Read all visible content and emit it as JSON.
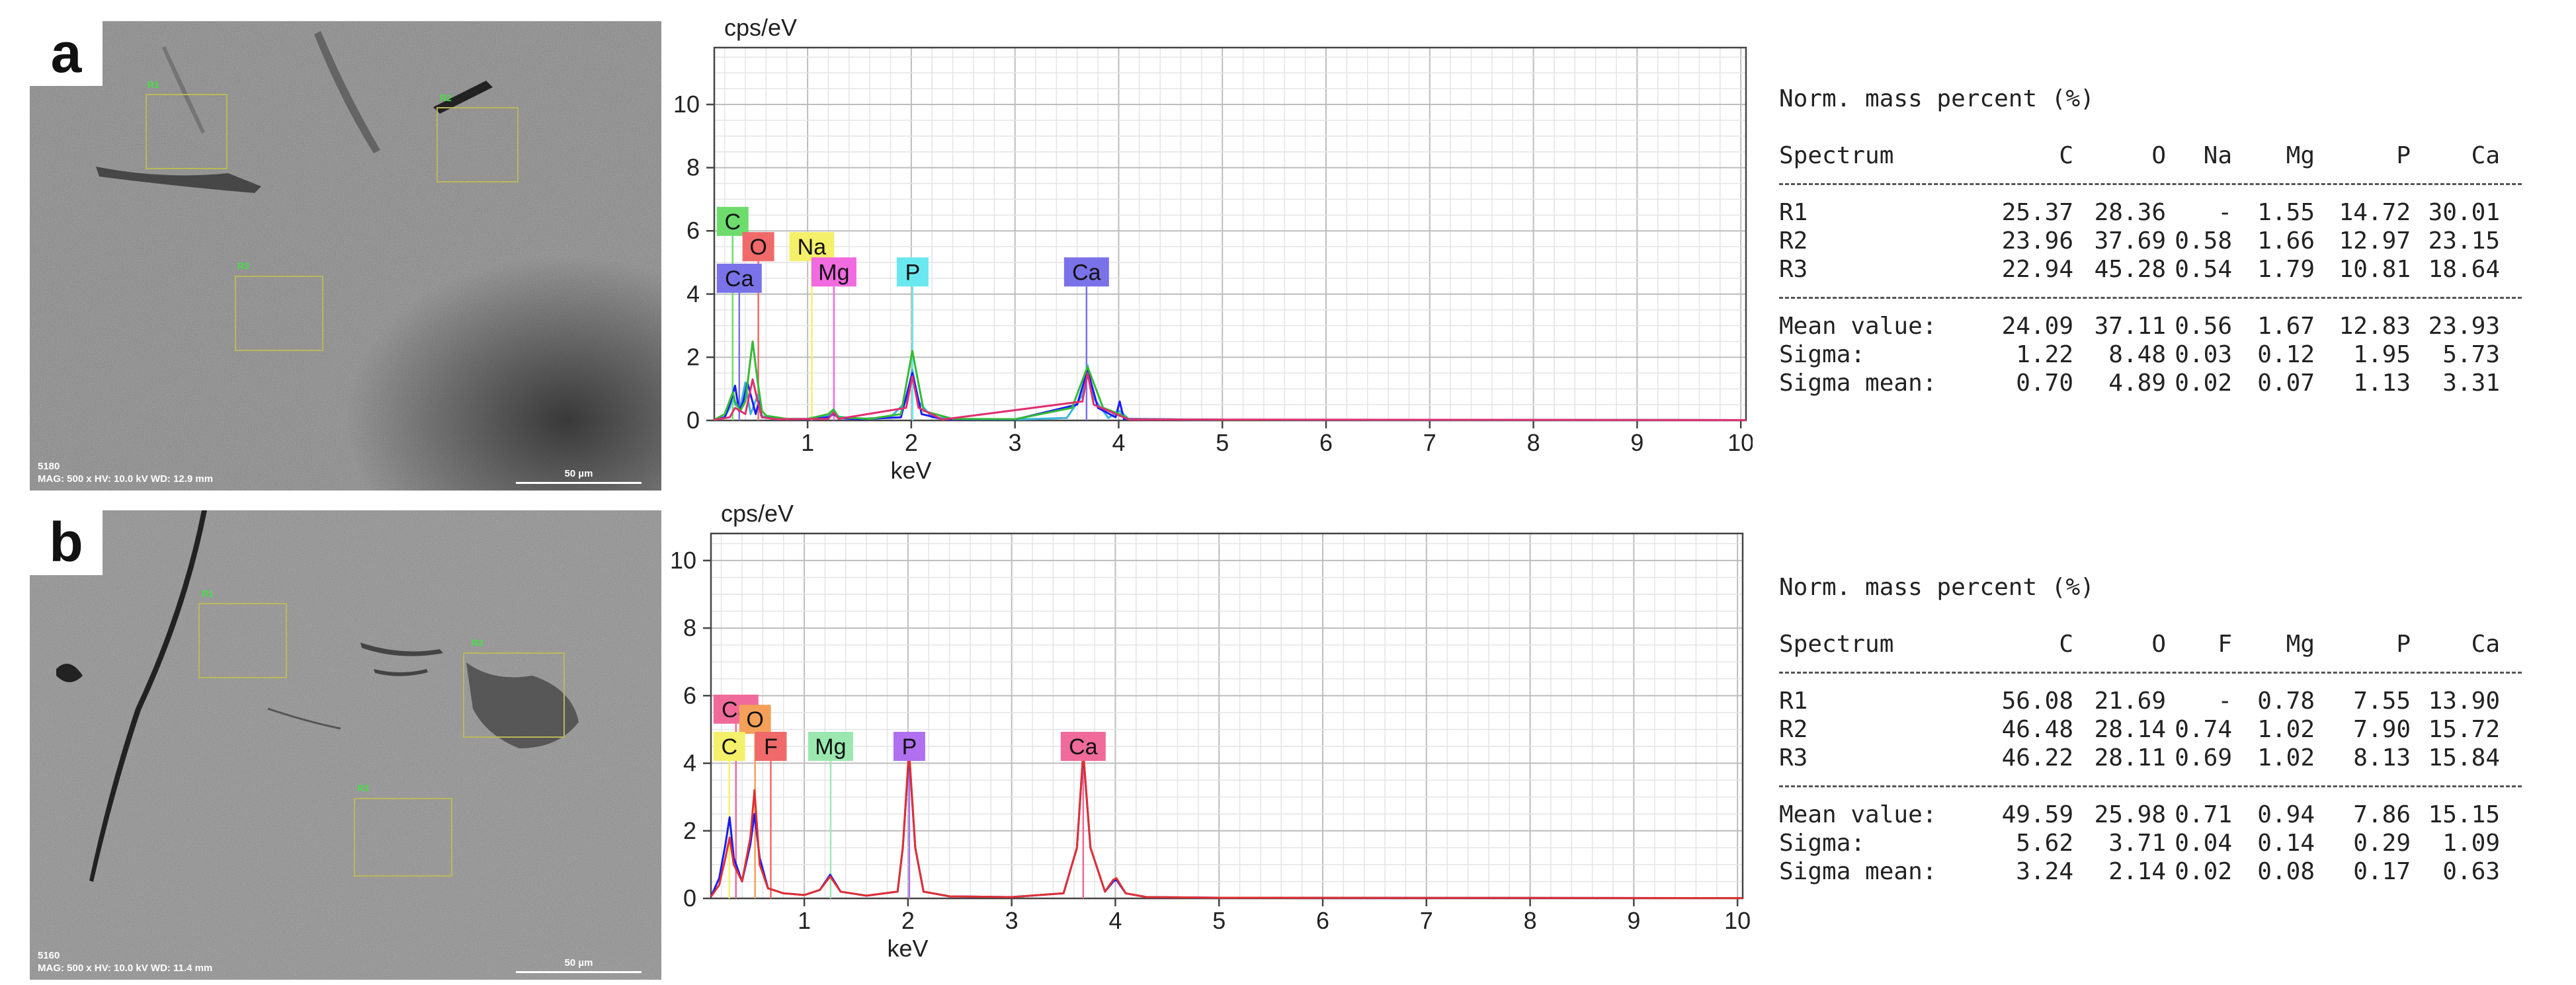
{
  "panels": [
    {
      "letter": "a",
      "sem": {
        "meta_line1": "5180",
        "meta_line2": "MAG: 500 x  HV: 10.0 kV  WD: 12.9 mm",
        "scale_label": "50 µm",
        "roi_labels": [
          "R1",
          "R2",
          "R3"
        ]
      },
      "table": {
        "title": "Norm. mass percent (%)",
        "columns": [
          "Spectrum",
          "C",
          "O",
          "Na",
          "Mg",
          "P",
          "Ca"
        ],
        "rows": [
          [
            "R1",
            "25.37",
            "28.36",
            "-",
            "1.55",
            "14.72",
            "30.01"
          ],
          [
            "R2",
            "23.96",
            "37.69",
            "0.58",
            "1.66",
            "12.97",
            "23.15"
          ],
          [
            "R3",
            "22.94",
            "45.28",
            "0.54",
            "1.79",
            "10.81",
            "18.64"
          ]
        ],
        "stats": [
          [
            "Mean value:",
            "24.09",
            "37.11",
            "0.56",
            "1.67",
            "12.83",
            "23.93"
          ],
          [
            "Sigma:",
            "1.22",
            "8.48",
            "0.03",
            "0.12",
            "1.95",
            "5.73"
          ],
          [
            "Sigma mean:",
            "0.70",
            "4.89",
            "0.02",
            "0.07",
            "1.13",
            "3.31"
          ]
        ]
      }
    },
    {
      "letter": "b",
      "sem": {
        "meta_line1": "5160",
        "meta_line2": "MAG: 500 x  HV: 10.0 kV  WD: 11.4 mm",
        "scale_label": "50 µm",
        "roi_labels": [
          "R1",
          "R2",
          "R3"
        ]
      },
      "table": {
        "title": "Norm. mass percent (%)",
        "columns": [
          "Spectrum",
          "C",
          "O",
          "F",
          "Mg",
          "P",
          "Ca"
        ],
        "rows": [
          [
            "R1",
            "56.08",
            "21.69",
            "-",
            "0.78",
            "7.55",
            "13.90"
          ],
          [
            "R2",
            "46.48",
            "28.14",
            "0.74",
            "1.02",
            "7.90",
            "15.72"
          ],
          [
            "R3",
            "46.22",
            "28.11",
            "0.69",
            "1.02",
            "8.13",
            "15.84"
          ]
        ],
        "stats": [
          [
            "Mean value:",
            "49.59",
            "25.98",
            "0.71",
            "0.94",
            "7.86",
            "15.15"
          ],
          [
            "Sigma:",
            "5.62",
            "3.71",
            "0.04",
            "0.14",
            "0.29",
            "1.09"
          ],
          [
            "Sigma mean:",
            "3.24",
            "2.14",
            "0.02",
            "0.08",
            "0.17",
            "0.63"
          ]
        ]
      }
    }
  ],
  "chart_data": [
    {
      "type": "line",
      "title": "",
      "xlabel": "keV",
      "ylabel": "cps/eV",
      "xlim": [
        0.1,
        10.05
      ],
      "ylim": [
        0,
        11.8
      ],
      "xticks": [
        1,
        2,
        3,
        4,
        5,
        6,
        7,
        8,
        9,
        10
      ],
      "yticks": [
        0,
        2,
        4,
        6,
        8,
        10
      ],
      "grid": true,
      "series": [
        {
          "color": "#3cb4e0",
          "x": [
            0.1,
            0.2,
            0.25,
            0.28,
            0.3,
            0.35,
            0.4,
            0.45,
            0.52,
            0.55,
            0.6,
            0.8,
            1.0,
            1.2,
            1.25,
            1.3,
            1.5,
            1.8,
            1.95,
            2.01,
            2.07,
            2.2,
            2.5,
            3.0,
            3.5,
            3.65,
            3.7,
            3.76,
            3.9,
            4.01,
            4.1,
            5.0,
            10.05
          ],
          "y": [
            0.02,
            0.1,
            0.4,
            0.9,
            0.5,
            0.4,
            1.2,
            0.2,
            0.8,
            0.15,
            0.1,
            0.04,
            0.05,
            0.15,
            0.3,
            0.12,
            0.05,
            0.1,
            0.6,
            1.6,
            0.6,
            0.1,
            0.04,
            0.03,
            0.08,
            0.8,
            1.75,
            0.7,
            0.08,
            0.3,
            0.04,
            0.02,
            0.01
          ]
        },
        {
          "color": "#1a1aff",
          "x": [
            0.1,
            0.2,
            0.26,
            0.3,
            0.34,
            0.38,
            0.42,
            0.5,
            0.53,
            0.56,
            0.7,
            1.0,
            1.2,
            1.25,
            1.3,
            1.5,
            1.9,
            2.01,
            2.1,
            2.3,
            3.0,
            3.6,
            3.7,
            3.8,
            3.97,
            4.01,
            4.05,
            5.0,
            10.05
          ],
          "y": [
            0.02,
            0.1,
            0.6,
            1.1,
            0.3,
            0.6,
            1.2,
            0.2,
            0.6,
            0.1,
            0.05,
            0.04,
            0.1,
            0.2,
            0.08,
            0.04,
            0.1,
            1.5,
            0.2,
            0.04,
            0.03,
            0.5,
            1.6,
            0.4,
            0.1,
            0.6,
            0.05,
            0.02,
            0.01
          ]
        },
        {
          "color": "#33bb33",
          "x": [
            0.1,
            0.2,
            0.28,
            0.3,
            0.35,
            0.4,
            0.47,
            0.52,
            0.56,
            0.6,
            0.8,
            1.0,
            1.2,
            1.25,
            1.3,
            1.6,
            1.9,
            2.01,
            2.12,
            2.4,
            3.0,
            3.55,
            3.7,
            3.85,
            4.01,
            4.1,
            5.0,
            10.05
          ],
          "y": [
            0.02,
            0.2,
            0.9,
            0.6,
            0.3,
            0.6,
            2.5,
            1.2,
            0.3,
            0.15,
            0.05,
            0.05,
            0.2,
            0.35,
            0.1,
            0.05,
            0.2,
            2.2,
            0.3,
            0.05,
            0.04,
            0.4,
            1.7,
            0.4,
            0.2,
            0.04,
            0.02,
            0.01
          ]
        },
        {
          "color": "#e03070",
          "x": [
            0.1,
            0.25,
            0.3,
            0.4,
            0.47,
            0.52,
            0.56,
            0.7,
            1.2,
            1.25,
            1.3,
            1.95,
            2.01,
            2.07,
            2.3,
            3.65,
            3.7,
            3.76,
            4.01,
            4.1,
            10.05
          ],
          "y": [
            0.02,
            0.1,
            0.4,
            0.2,
            1.3,
            0.6,
            0.1,
            0.04,
            0.05,
            0.25,
            0.05,
            0.4,
            1.4,
            0.4,
            0.03,
            0.6,
            1.5,
            0.5,
            0.15,
            0.03,
            0.01
          ]
        }
      ],
      "peak_markers": [
        {
          "label": "C",
          "x": 0.277,
          "label_y": 6.3,
          "color": "#6ddc6d"
        },
        {
          "label": "O",
          "x": 0.525,
          "label_y": 5.5,
          "color": "#f06a6a"
        },
        {
          "label": "Na",
          "x": 1.04,
          "label_y": 5.5,
          "color": "#f5f06a"
        },
        {
          "label": "Ca",
          "x": 0.341,
          "label_y": 4.5,
          "color": "#7a72e8"
        },
        {
          "label": "Mg",
          "x": 1.254,
          "label_y": 4.7,
          "color": "#f06ae0"
        },
        {
          "label": "P",
          "x": 2.013,
          "label_y": 4.7,
          "color": "#6ae8f0"
        },
        {
          "label": "Ca",
          "x": 3.69,
          "label_y": 4.7,
          "color": "#7a72e8"
        }
      ]
    },
    {
      "type": "line",
      "title": "",
      "xlabel": "keV",
      "ylabel": "cps/eV",
      "xlim": [
        0.1,
        10.05
      ],
      "ylim": [
        0,
        10.8
      ],
      "xticks": [
        1,
        2,
        3,
        4,
        5,
        6,
        7,
        8,
        9,
        10
      ],
      "yticks": [
        0,
        2,
        4,
        6,
        8,
        10
      ],
      "grid": true,
      "series": [
        {
          "color": "#1a1aff",
          "x": [
            0.1,
            0.18,
            0.24,
            0.28,
            0.32,
            0.4,
            0.48,
            0.52,
            0.57,
            0.65,
            0.8,
            1.0,
            1.15,
            1.25,
            1.35,
            1.6,
            1.9,
            1.95,
            2.01,
            2.07,
            2.15,
            2.4,
            3.0,
            3.5,
            3.63,
            3.69,
            3.76,
            3.9,
            3.98,
            4.01,
            4.1,
            4.3,
            5.0,
            10.05
          ],
          "y": [
            0.05,
            0.6,
            1.6,
            2.4,
            1.2,
            0.5,
            1.6,
            2.5,
            1.2,
            0.3,
            0.15,
            0.1,
            0.25,
            0.7,
            0.2,
            0.08,
            0.2,
            1.5,
            4.3,
            1.5,
            0.2,
            0.06,
            0.04,
            0.15,
            1.5,
            4.3,
            1.5,
            0.2,
            0.5,
            0.55,
            0.15,
            0.04,
            0.02,
            0.01
          ]
        },
        {
          "color": "#e03030",
          "x": [
            0.1,
            0.18,
            0.24,
            0.28,
            0.32,
            0.4,
            0.48,
            0.52,
            0.57,
            0.65,
            0.8,
            1.0,
            1.15,
            1.25,
            1.35,
            1.6,
            1.9,
            1.95,
            2.01,
            2.07,
            2.15,
            2.4,
            3.0,
            3.5,
            3.63,
            3.69,
            3.76,
            3.9,
            3.98,
            4.01,
            4.1,
            4.3,
            5.0,
            10.05
          ],
          "y": [
            0.05,
            0.4,
            1.2,
            1.8,
            1.0,
            0.5,
            1.8,
            3.2,
            1.0,
            0.3,
            0.15,
            0.1,
            0.25,
            0.65,
            0.2,
            0.08,
            0.2,
            1.5,
            4.4,
            1.5,
            0.2,
            0.06,
            0.04,
            0.15,
            1.5,
            4.35,
            1.5,
            0.2,
            0.55,
            0.6,
            0.15,
            0.04,
            0.02,
            0.01
          ]
        }
      ],
      "peak_markers": [
        {
          "label": "Ca",
          "x": 0.341,
          "label_y": 5.6,
          "color": "#f06a9a"
        },
        {
          "label": "O",
          "x": 0.525,
          "label_y": 5.3,
          "color": "#f5a05a"
        },
        {
          "label": "C",
          "x": 0.277,
          "label_y": 4.5,
          "color": "#f5f06a"
        },
        {
          "label": "F",
          "x": 0.677,
          "label_y": 4.5,
          "color": "#f06a6a"
        },
        {
          "label": "Mg",
          "x": 1.254,
          "label_y": 4.5,
          "color": "#9ae8b0"
        },
        {
          "label": "P",
          "x": 2.013,
          "label_y": 4.5,
          "color": "#b070f0"
        },
        {
          "label": "Ca",
          "x": 3.69,
          "label_y": 4.5,
          "color": "#f06a9a"
        }
      ]
    }
  ]
}
